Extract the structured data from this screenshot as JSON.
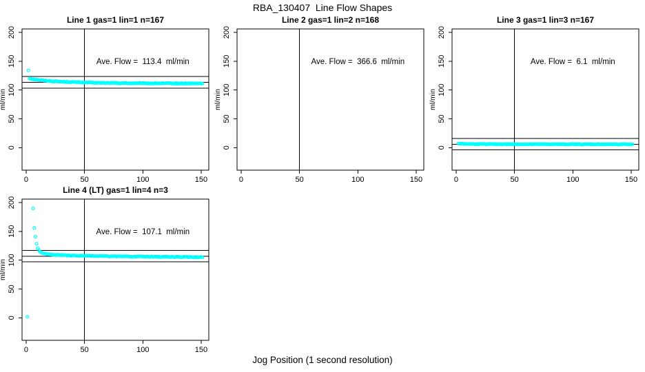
{
  "figure": {
    "title": "RBA_130407  Line Flow Shapes",
    "xlabel": "Jog Position (1 second resolution)",
    "background": "#ffffff",
    "foreground": "#000000"
  },
  "chart_data": {
    "type": "scatter",
    "marker": {
      "shape": "open-circle",
      "color": "#00ffff",
      "radius_px": 2
    },
    "axes": {
      "xticks": [
        0,
        50,
        100,
        150
      ],
      "yticks": [
        0,
        50,
        100,
        150,
        200
      ],
      "xlim": [
        -3.5,
        156.5
      ],
      "ylim": [
        -39,
        206
      ],
      "ylabel": "ml/min",
      "grid": false
    },
    "vline_x": 50,
    "band_offset": 10,
    "annotation_anchor": {
      "x": 100,
      "y": 150
    },
    "panels": [
      {
        "id": "line-1",
        "row": 0,
        "col": 0,
        "title": "Line 1 gas=1 lin=1 n=167",
        "ave_flow": 113.4,
        "annotation": "Ave. Flow =  113.4  ml/min",
        "n_label": 167,
        "marker_count": 166,
        "x_start": 3,
        "x_end": 151,
        "jitter": 0.65,
        "outliers": [
          [
            2,
            134
          ]
        ],
        "trend": [
          [
            3,
            120.5
          ],
          [
            5,
            119.3
          ],
          [
            8,
            118.3
          ],
          [
            12,
            117.2
          ],
          [
            16,
            116.4
          ],
          [
            20,
            115.7
          ],
          [
            25,
            115.1
          ],
          [
            30,
            114.6
          ],
          [
            35,
            114.2
          ],
          [
            40,
            113.8
          ],
          [
            45,
            113.5
          ],
          [
            50,
            113.2
          ],
          [
            60,
            112.7
          ],
          [
            70,
            112.4
          ],
          [
            80,
            112.1
          ],
          [
            90,
            111.9
          ],
          [
            100,
            111.8
          ],
          [
            110,
            111.7
          ],
          [
            120,
            111.6
          ],
          [
            135,
            111.5
          ],
          [
            151,
            111.4
          ]
        ]
      },
      {
        "id": "line-2",
        "row": 0,
        "col": 1,
        "title": "Line 2 gas=1 lin=2 n=168",
        "ave_flow": 366.6,
        "annotation": "Ave. Flow =  366.6  ml/min",
        "n_label": 168,
        "marker_count": 0,
        "x_start": 0,
        "x_end": 0,
        "jitter": 0,
        "outliers": [],
        "trend": []
      },
      {
        "id": "line-3",
        "row": 0,
        "col": 2,
        "title": "Line 3 gas=1 lin=3 n=167",
        "ave_flow": 6.1,
        "annotation": "Ave. Flow =  6.1  ml/min",
        "n_label": 167,
        "marker_count": 167,
        "x_start": 2,
        "x_end": 151,
        "jitter": 0.55,
        "outliers": [],
        "trend": [
          [
            2,
            7.4
          ],
          [
            4,
            7.0
          ],
          [
            7,
            6.7
          ],
          [
            12,
            6.5
          ],
          [
            20,
            6.3
          ],
          [
            35,
            6.15
          ],
          [
            60,
            6.0
          ],
          [
            90,
            5.95
          ],
          [
            120,
            5.9
          ],
          [
            151,
            5.85
          ]
        ]
      },
      {
        "id": "line-4",
        "row": 1,
        "col": 0,
        "title": "Line 4 (LT) gas=1 lin=4 n=3",
        "ave_flow": 107.1,
        "annotation": "Ave. Flow =  107.1  ml/min",
        "n_label": 3,
        "marker_count": 149,
        "x_start": 6,
        "x_end": 151,
        "jitter": 0.55,
        "outliers": [
          [
            1,
            2
          ]
        ],
        "trend": [
          [
            6,
            190
          ],
          [
            7,
            155
          ],
          [
            8,
            140
          ],
          [
            9,
            128
          ],
          [
            10,
            120.5
          ],
          [
            11,
            117
          ],
          [
            12,
            114.8
          ],
          [
            13,
            113.4
          ],
          [
            14,
            112.4
          ],
          [
            16,
            111.3
          ],
          [
            18,
            110.6
          ],
          [
            20,
            110.1
          ],
          [
            25,
            109.3
          ],
          [
            30,
            108.8
          ],
          [
            40,
            108.1
          ],
          [
            50,
            107.6
          ],
          [
            60,
            107.2
          ],
          [
            75,
            106.8
          ],
          [
            90,
            106.4
          ],
          [
            105,
            106.1
          ],
          [
            120,
            105.8
          ],
          [
            135,
            105.5
          ],
          [
            151,
            105.2
          ]
        ]
      }
    ]
  }
}
